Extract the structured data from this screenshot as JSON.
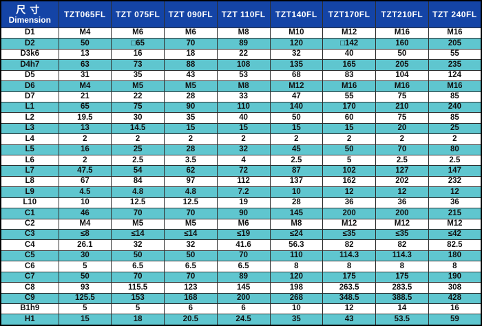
{
  "colors": {
    "header_bg": "#1444a6",
    "row_bg": "#ffffff",
    "row_alt_bg": "#5fc6cf",
    "border": "#2e2e2e",
    "header_text": "#ffffff",
    "cell_text": "#101010"
  },
  "chart_data": {
    "type": "table",
    "title": "",
    "corner_header": {
      "cn": "尺寸",
      "en": "Dimension"
    },
    "columns": [
      "TZT065FL",
      "TZT 075FL",
      "TZT 090FL",
      "TZT 110FL",
      "TZT140FL",
      "TZT170FL",
      "TZT210FL",
      "TZT 240FL"
    ],
    "rows": [
      {
        "label": "D1",
        "values": [
          "M4",
          "M6",
          "M6",
          "M8",
          "M10",
          "M12",
          "M16",
          "M16"
        ]
      },
      {
        "label": "D2",
        "values": [
          "50",
          "□65",
          "70",
          "89",
          "120",
          "□142",
          "160",
          "205"
        ]
      },
      {
        "label": "D3k6",
        "values": [
          "13",
          "16",
          "18",
          "22",
          "32",
          "40",
          "50",
          "55"
        ]
      },
      {
        "label": "D4h7",
        "values": [
          "63",
          "73",
          "88",
          "108",
          "135",
          "165",
          "205",
          "235"
        ]
      },
      {
        "label": "D5",
        "values": [
          "31",
          "35",
          "43",
          "53",
          "68",
          "83",
          "104",
          "124"
        ]
      },
      {
        "label": "D6",
        "values": [
          "M4",
          "M5",
          "M5",
          "M8",
          "M12",
          "M16",
          "M16",
          "M16"
        ]
      },
      {
        "label": "D7",
        "values": [
          "21",
          "22",
          "28",
          "33",
          "47",
          "55",
          "75",
          "85"
        ]
      },
      {
        "label": "L1",
        "values": [
          "65",
          "75",
          "90",
          "110",
          "140",
          "170",
          "210",
          "240"
        ]
      },
      {
        "label": "L2",
        "values": [
          "19.5",
          "30",
          "35",
          "40",
          "50",
          "60",
          "75",
          "85"
        ]
      },
      {
        "label": "L3",
        "values": [
          "13",
          "14.5",
          "15",
          "15",
          "15",
          "15",
          "20",
          "25"
        ]
      },
      {
        "label": "L4",
        "values": [
          "2",
          "2",
          "2",
          "2",
          "2",
          "2",
          "2",
          "2"
        ]
      },
      {
        "label": "L5",
        "values": [
          "16",
          "25",
          "28",
          "32",
          "45",
          "50",
          "70",
          "80"
        ]
      },
      {
        "label": "L6",
        "values": [
          "2",
          "2.5",
          "3.5",
          "4",
          "2.5",
          "5",
          "2.5",
          "2.5"
        ]
      },
      {
        "label": "L7",
        "values": [
          "47.5",
          "54",
          "62",
          "72",
          "87",
          "102",
          "127",
          "147"
        ]
      },
      {
        "label": "L8",
        "values": [
          "67",
          "84",
          "97",
          "112",
          "137",
          "162",
          "202",
          "232"
        ]
      },
      {
        "label": "L9",
        "values": [
          "4.5",
          "4.8",
          "4.8",
          "7.2",
          "10",
          "12",
          "12",
          "12"
        ]
      },
      {
        "label": "L10",
        "values": [
          "10",
          "12.5",
          "12.5",
          "19",
          "28",
          "36",
          "36",
          "36"
        ]
      },
      {
        "label": "C1",
        "values": [
          "46",
          "70",
          "70",
          "90",
          "145",
          "200",
          "200",
          "215"
        ]
      },
      {
        "label": "C2",
        "values": [
          "M4",
          "M5",
          "M5",
          "M6",
          "M8",
          "M12",
          "M12",
          "M12"
        ]
      },
      {
        "label": "C3",
        "values": [
          "≤8",
          "≤14",
          "≤14",
          "≤19",
          "≤24",
          "≤35",
          "≤35",
          "≤42"
        ]
      },
      {
        "label": "C4",
        "values": [
          "26.1",
          "32",
          "32",
          "41.6",
          "56.3",
          "82",
          "82",
          "82.5"
        ]
      },
      {
        "label": "C5",
        "values": [
          "30",
          "50",
          "50",
          "70",
          "110",
          "114.3",
          "114.3",
          "180"
        ]
      },
      {
        "label": "C6",
        "values": [
          "5",
          "6.5",
          "6.5",
          "6.5",
          "8",
          "8",
          "8",
          "8"
        ]
      },
      {
        "label": "C7",
        "values": [
          "50",
          "70",
          "70",
          "89",
          "120",
          "175",
          "175",
          "190"
        ]
      },
      {
        "label": "C8",
        "values": [
          "93",
          "115.5",
          "123",
          "145",
          "198",
          "263.5",
          "283.5",
          "308"
        ]
      },
      {
        "label": "C9",
        "values": [
          "125.5",
          "153",
          "168",
          "200",
          "268",
          "348.5",
          "388.5",
          "428"
        ]
      },
      {
        "label": "B1h9",
        "values": [
          "5",
          "5",
          "6",
          "6",
          "10",
          "12",
          "14",
          "16"
        ]
      },
      {
        "label": "H1",
        "values": [
          "15",
          "18",
          "20.5",
          "24.5",
          "35",
          "43",
          "53.5",
          "59"
        ]
      }
    ]
  }
}
